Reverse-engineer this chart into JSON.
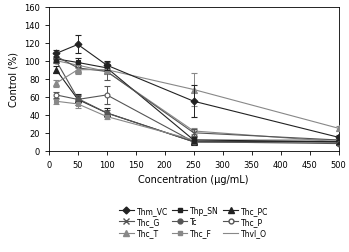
{
  "x": [
    12.5,
    50,
    100,
    250,
    500
  ],
  "series": {
    "Thm_VC": {
      "y": [
        108,
        118,
        95,
        55,
        15
      ],
      "yerr": [
        4,
        10,
        5,
        18,
        3
      ],
      "color": "#222222",
      "marker": "D",
      "markersize": 3.5,
      "markerfacecolor": "#222222",
      "linestyle": "-",
      "zorder": 5
    },
    "Thp_SN": {
      "y": [
        102,
        98,
        92,
        12,
        10
      ],
      "yerr": [
        3,
        5,
        4,
        3,
        2
      ],
      "color": "#222222",
      "marker": "s",
      "markersize": 3.5,
      "markerfacecolor": "#222222",
      "linestyle": "-",
      "zorder": 4
    },
    "Thc_PC": {
      "y": [
        90,
        57,
        42,
        10,
        10
      ],
      "yerr": [
        4,
        6,
        5,
        2,
        2
      ],
      "color": "#222222",
      "marker": "^",
      "markersize": 4,
      "markerfacecolor": "#222222",
      "linestyle": "-",
      "zorder": 3
    },
    "Thc_G": {
      "y": [
        105,
        92,
        88,
        20,
        12
      ],
      "yerr": [
        3,
        5,
        10,
        4,
        2
      ],
      "color": "#555555",
      "marker": "x",
      "markersize": 4,
      "markerfacecolor": "#555555",
      "linestyle": "-",
      "zorder": 4
    },
    "Tc": {
      "y": [
        100,
        58,
        42,
        10,
        8
      ],
      "yerr": [
        3,
        4,
        3,
        2,
        2
      ],
      "color": "#555555",
      "marker": "o",
      "markersize": 3.5,
      "markerfacecolor": "#555555",
      "linestyle": "-",
      "zorder": 3
    },
    "Thc_P": {
      "y": [
        62,
        57,
        62,
        10,
        10
      ],
      "yerr": [
        3,
        4,
        10,
        2,
        2
      ],
      "color": "#555555",
      "marker": "o",
      "markersize": 3.5,
      "markerfacecolor": "white",
      "linestyle": "-",
      "zorder": 2
    },
    "Thc_T": {
      "y": [
        75,
        90,
        90,
        68,
        25
      ],
      "yerr": [
        4,
        5,
        4,
        18,
        3
      ],
      "color": "#888888",
      "marker": "^",
      "markersize": 4,
      "markerfacecolor": "#888888",
      "linestyle": "-",
      "zorder": 4
    },
    "Thc_F": {
      "y": [
        55,
        52,
        38,
        12,
        12
      ],
      "yerr": [
        3,
        4,
        3,
        2,
        2
      ],
      "color": "#888888",
      "marker": "s",
      "markersize": 3.5,
      "markerfacecolor": "#888888",
      "linestyle": "-",
      "zorder": 3
    },
    "Thvl_O": {
      "y": [
        100,
        95,
        88,
        22,
        10
      ],
      "yerr": [
        3,
        3,
        3,
        3,
        2
      ],
      "color": "#888888",
      "marker": "None",
      "markersize": 0,
      "markerfacecolor": "#888888",
      "linestyle": "-",
      "zorder": 2
    }
  },
  "xlabel": "Concentration (μg/mL)",
  "ylabel": "Control (%)",
  "ylim": [
    0,
    160
  ],
  "xlim": [
    0,
    500
  ],
  "yticks": [
    0,
    20,
    40,
    60,
    80,
    100,
    120,
    140,
    160
  ],
  "xticks": [
    0,
    50,
    100,
    150,
    200,
    250,
    300,
    350,
    400,
    450,
    500
  ],
  "legend_order": [
    "Thm_VC",
    "Thc_G",
    "Thc_T",
    "Thp_SN",
    "Tc",
    "Thc_F",
    "Thc_PC",
    "Thc_P",
    "Thvl_O"
  ],
  "background_color": "#ffffff"
}
